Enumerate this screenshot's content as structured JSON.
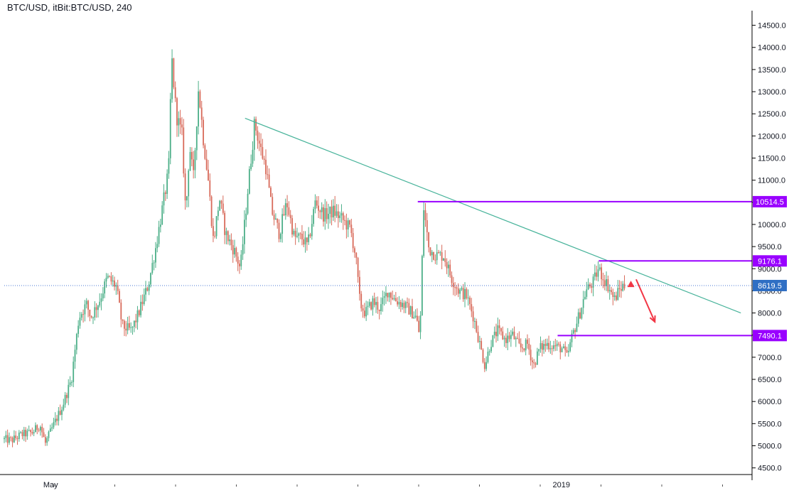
{
  "header": {
    "title": "BTC/USD, itBit:BTC/USD, 240"
  },
  "colors": {
    "up": "#4caf88",
    "down": "#d86a5a",
    "level": "#9900ff",
    "trendline": "#47b39a",
    "price_tag": "#2f6fc4",
    "arrow": "#f23645",
    "price_line": "#4d79d3"
  },
  "chart_data": {
    "type": "candlestick",
    "symbol": "BTC/USD",
    "exchange": "itBit",
    "timeframe": "240",
    "ylim": [
      4350,
      14750
    ],
    "y_ticks": [
      4500,
      5000,
      5500,
      6000,
      6500,
      7000,
      7500,
      8000,
      8500,
      9000,
      9500,
      10000,
      10500,
      11000,
      11500,
      12000,
      12500,
      13000,
      13500,
      14000,
      14500
    ],
    "y_tick_labels": [
      "4500.0",
      "5000.0",
      "5500.0",
      "6000.0",
      "6500.0",
      "7000.0",
      "7500.0",
      "8000.0",
      "8500.0",
      "9000.0",
      "9500.0",
      "10000.0",
      "10500.0",
      "11000.0",
      "11500.0",
      "12000.0",
      "12500.0",
      "13000.0",
      "13500.0",
      "14000.0",
      "14500.0"
    ],
    "x_labels": [
      {
        "text": "May",
        "pos": 0.062
      },
      {
        "text": "2019",
        "pos": 0.745
      }
    ],
    "x_tick_count": 12,
    "price_path": [
      [
        0,
        5150
      ],
      [
        0.012,
        5120
      ],
      [
        0.025,
        5250
      ],
      [
        0.04,
        5300
      ],
      [
        0.05,
        5480
      ],
      [
        0.057,
        5050
      ],
      [
        0.065,
        5350
      ],
      [
        0.08,
        5900
      ],
      [
        0.092,
        6500
      ],
      [
        0.102,
        7900
      ],
      [
        0.112,
        8200
      ],
      [
        0.118,
        7900
      ],
      [
        0.13,
        8300
      ],
      [
        0.14,
        8800
      ],
      [
        0.152,
        8600
      ],
      [
        0.16,
        7700
      ],
      [
        0.172,
        7600
      ],
      [
        0.182,
        8000
      ],
      [
        0.195,
        8650
      ],
      [
        0.205,
        9500
      ],
      [
        0.215,
        10500
      ],
      [
        0.222,
        11200
      ],
      [
        0.226,
        13800
      ],
      [
        0.232,
        12500
      ],
      [
        0.24,
        12000
      ],
      [
        0.245,
        10200
      ],
      [
        0.25,
        11800
      ],
      [
        0.255,
        11000
      ],
      [
        0.262,
        13100
      ],
      [
        0.268,
        12000
      ],
      [
        0.275,
        11000
      ],
      [
        0.282,
        9600
      ],
      [
        0.29,
        10600
      ],
      [
        0.298,
        9800
      ],
      [
        0.31,
        9400
      ],
      [
        0.318,
        9000
      ],
      [
        0.328,
        10800
      ],
      [
        0.337,
        12300
      ],
      [
        0.345,
        11700
      ],
      [
        0.352,
        11300
      ],
      [
        0.36,
        10300
      ],
      [
        0.37,
        9800
      ],
      [
        0.38,
        10500
      ],
      [
        0.39,
        9700
      ],
      [
        0.4,
        9700
      ],
      [
        0.408,
        9500
      ],
      [
        0.418,
        10500
      ],
      [
        0.43,
        10200
      ],
      [
        0.442,
        10300
      ],
      [
        0.455,
        10100
      ],
      [
        0.465,
        9900
      ],
      [
        0.472,
        9300
      ],
      [
        0.478,
        8200
      ],
      [
        0.485,
        8000
      ],
      [
        0.495,
        8250
      ],
      [
        0.505,
        8100
      ],
      [
        0.515,
        8500
      ],
      [
        0.525,
        8300
      ],
      [
        0.535,
        8200
      ],
      [
        0.545,
        8050
      ],
      [
        0.553,
        7900
      ],
      [
        0.558,
        7450
      ],
      [
        0.563,
        10400
      ],
      [
        0.57,
        9450
      ],
      [
        0.58,
        9300
      ],
      [
        0.59,
        9300
      ],
      [
        0.6,
        8800
      ],
      [
        0.61,
        8500
      ],
      [
        0.62,
        8400
      ],
      [
        0.63,
        7900
      ],
      [
        0.638,
        7300
      ],
      [
        0.645,
        6800
      ],
      [
        0.652,
        7300
      ],
      [
        0.662,
        7600
      ],
      [
        0.672,
        7400
      ],
      [
        0.682,
        7500
      ],
      [
        0.692,
        7200
      ],
      [
        0.702,
        7300
      ],
      [
        0.71,
        6800
      ],
      [
        0.718,
        7200
      ],
      [
        0.728,
        7300
      ],
      [
        0.738,
        7250
      ],
      [
        0.748,
        7200
      ],
      [
        0.755,
        7000
      ],
      [
        0.762,
        7500
      ],
      [
        0.772,
        8000
      ],
      [
        0.78,
        8500
      ],
      [
        0.79,
        8700
      ],
      [
        0.797,
        9000
      ],
      [
        0.803,
        8800
      ],
      [
        0.81,
        8600
      ],
      [
        0.818,
        8300
      ],
      [
        0.824,
        8500
      ],
      [
        0.83,
        8620
      ]
    ],
    "trendline": {
      "start": [
        0.322,
        12400
      ],
      "end": [
        0.985,
        8000
      ]
    },
    "levels": [
      {
        "value": 10514.5,
        "label": "10514.5",
        "x_start": 0.553
      },
      {
        "value": 9176.1,
        "label": "9176.1",
        "x_start": 0.795
      },
      {
        "value": 7490.1,
        "label": "7490.1",
        "x_start": 0.74
      }
    ],
    "current_price": {
      "value": 8619.5,
      "label": "8619.5"
    },
    "annotations": [
      {
        "type": "triangle-up",
        "x": 0.838,
        "y": 8650
      },
      {
        "type": "arrow",
        "from": [
          0.845,
          8760
        ],
        "to": [
          0.87,
          7800
        ]
      }
    ]
  }
}
